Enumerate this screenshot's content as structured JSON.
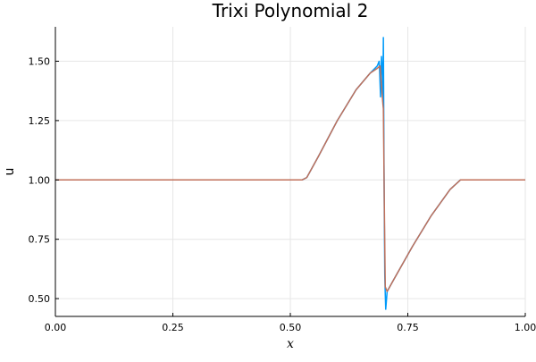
{
  "chart_data": {
    "type": "line",
    "title": "Trixi Polynomial 2",
    "xlabel": "x",
    "ylabel": "u",
    "xlim": [
      0.0,
      1.0
    ],
    "ylim": [
      0.425,
      1.645
    ],
    "x_ticks": [
      0.0,
      0.25,
      0.5,
      0.75,
      1.0
    ],
    "x_tick_labels": [
      "0.00",
      "0.25",
      "0.50",
      "0.75",
      "1.00"
    ],
    "y_ticks": [
      0.5,
      0.75,
      1.0,
      1.25,
      1.5
    ],
    "y_tick_labels": [
      "0.50",
      "0.75",
      "1.00",
      "1.25",
      "1.50"
    ],
    "grid": true,
    "legend": "none",
    "colors": {
      "series1": "#009af9",
      "series2": "#c0705a"
    },
    "series": [
      {
        "color": "#009af9",
        "x": [
          0.0,
          0.525,
          0.535,
          0.56,
          0.6,
          0.64,
          0.67,
          0.685,
          0.689,
          0.69,
          0.692,
          0.694,
          0.696,
          0.697,
          0.698,
          0.699,
          0.7,
          0.701,
          0.702,
          0.703,
          0.706,
          0.72,
          0.76,
          0.8,
          0.84,
          0.862,
          0.87,
          1.0
        ],
        "y": [
          1.0,
          1.0,
          1.01,
          1.1,
          1.25,
          1.38,
          1.45,
          1.48,
          1.5,
          1.46,
          1.35,
          1.52,
          1.45,
          1.33,
          1.6,
          1.2,
          0.85,
          0.6,
          0.52,
          0.455,
          0.53,
          0.58,
          0.72,
          0.85,
          0.96,
          1.0,
          1.0,
          1.0
        ]
      },
      {
        "color": "#c0705a",
        "x": [
          0.0,
          0.525,
          0.535,
          0.56,
          0.6,
          0.64,
          0.67,
          0.685,
          0.691,
          0.694,
          0.697,
          0.698,
          0.7,
          0.702,
          0.706,
          0.72,
          0.76,
          0.8,
          0.84,
          0.862,
          0.87,
          1.0
        ],
        "y": [
          1.0,
          1.0,
          1.01,
          1.1,
          1.25,
          1.38,
          1.45,
          1.47,
          1.48,
          1.4,
          1.32,
          1.3,
          0.9,
          0.55,
          0.53,
          0.58,
          0.72,
          0.85,
          0.96,
          1.0,
          1.0,
          1.0
        ]
      }
    ]
  }
}
